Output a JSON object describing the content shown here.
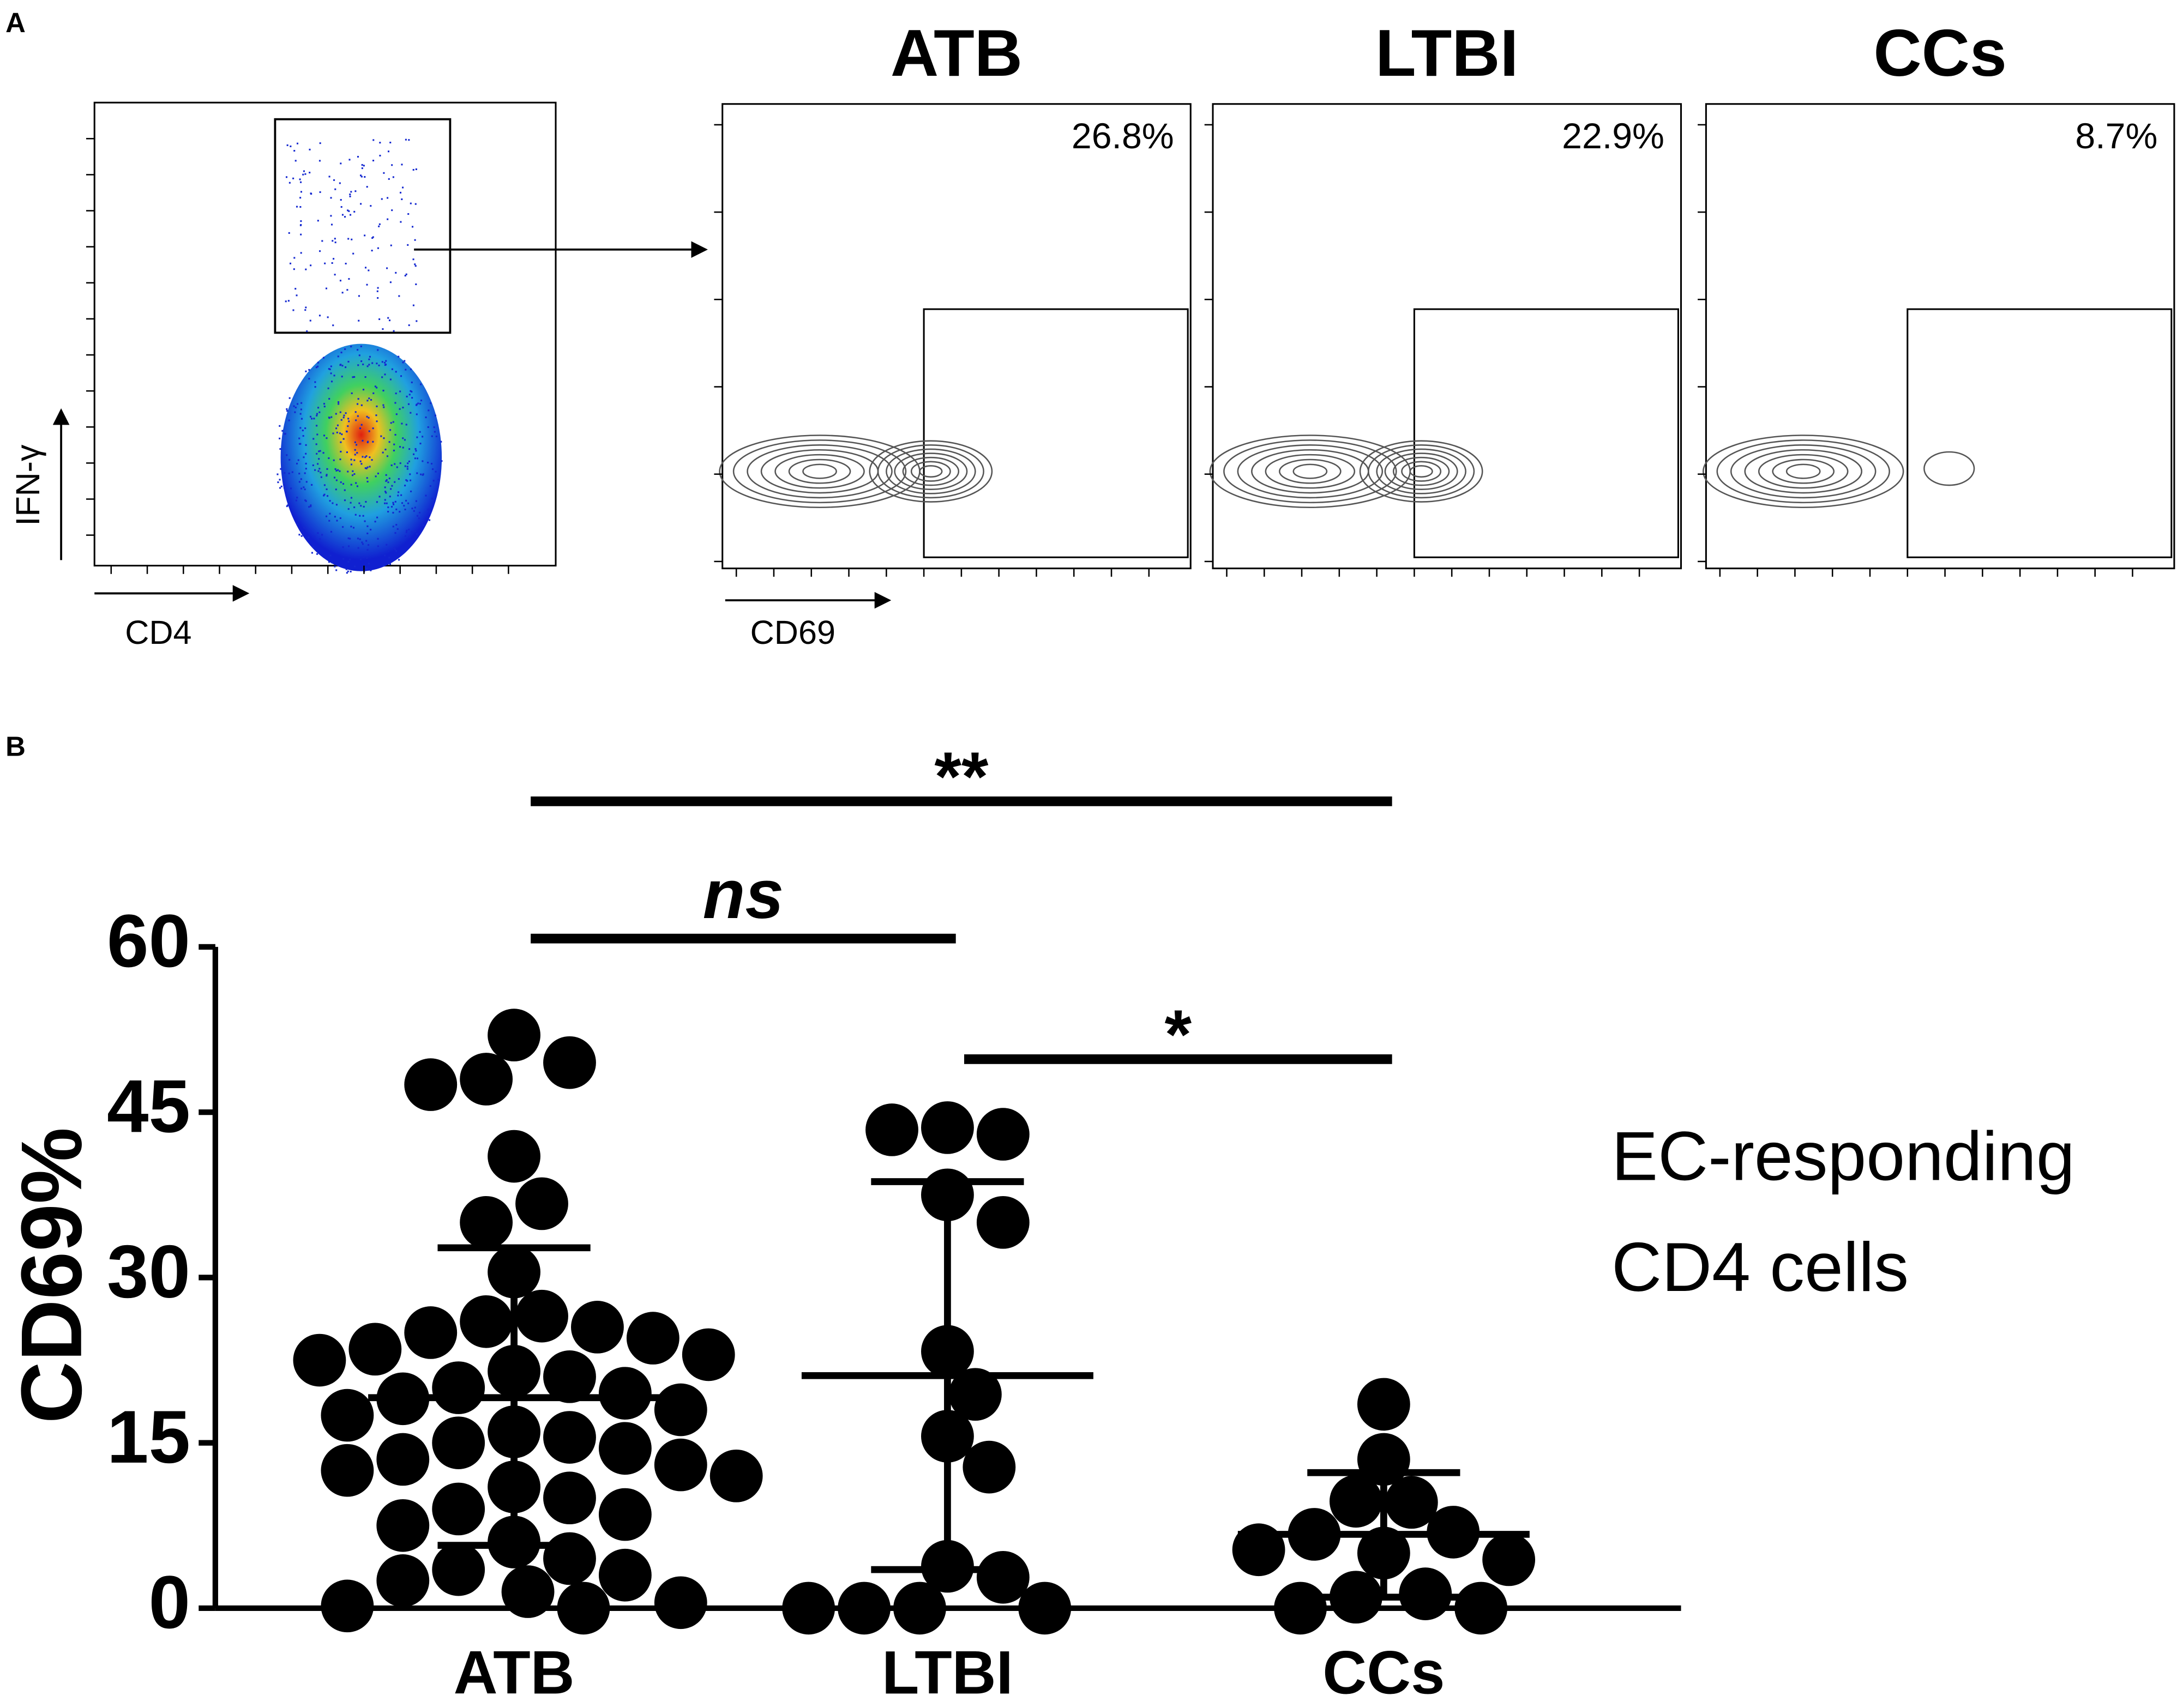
{
  "panel_a": {
    "label": "A",
    "gate_x_label": "CD4",
    "gate_y_label": "IFN-γ",
    "contour_x_label": "CD69",
    "plots": [
      {
        "title": "ATB",
        "percent": "26.8%"
      },
      {
        "title": "LTBI",
        "percent": "22.9%"
      },
      {
        "title": "CCs",
        "percent": "8.7%"
      }
    ]
  },
  "chart_data": {
    "type": "dot",
    "panel_label": "B",
    "ylabel": "CD69%",
    "categories": [
      "ATB",
      "LTBI",
      "CCs"
    ],
    "points": [
      [
        52,
        49.5,
        48,
        47.5,
        41,
        36.7,
        35,
        30.5,
        26.5,
        26,
        25.5,
        25,
        24.5,
        23.5,
        23,
        22.5,
        21.5,
        21,
        20,
        19.5,
        19,
        18,
        17.5,
        16,
        15.5,
        15,
        14.5,
        13.5,
        13,
        12.5,
        12,
        11,
        10,
        9,
        8.5,
        7.5,
        6,
        4.5,
        3.5,
        3,
        2.5,
        1.5,
        0.5,
        0.2,
        0
      ],
      [
        43.6,
        43,
        43.4,
        37.5,
        35,
        23.3,
        19.4,
        15.6,
        12.8,
        3.8,
        2.8,
        0,
        0,
        0,
        0
      ],
      [
        18.5,
        13.5,
        9.6,
        9.7,
        6.9,
        5,
        6.7,
        4.4,
        5.3,
        1.3,
        1,
        0,
        0
      ]
    ],
    "means": [
      19.1,
      21.1,
      6.7
    ],
    "error_low": [
      5.7,
      3.5,
      1
    ],
    "error_high": [
      32.7,
      38.7,
      12.3
    ],
    "ylim": [
      0,
      60
    ],
    "yticks": [
      0,
      15,
      30,
      45,
      60
    ],
    "color": "#000000",
    "comparisons": [
      {
        "label": "**",
        "groups": [
          "ATB",
          "CCs"
        ]
      },
      {
        "label": "ns",
        "groups": [
          "ATB",
          "LTBI"
        ]
      },
      {
        "label": "*",
        "groups": [
          "LTBI",
          "CCs"
        ]
      }
    ],
    "annotation": [
      "EC-responding",
      "CD4 cells"
    ]
  }
}
